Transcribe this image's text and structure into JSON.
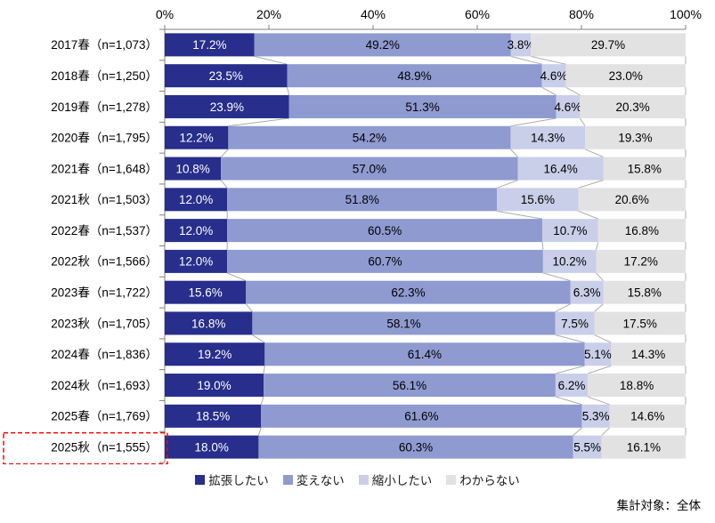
{
  "chart_data": {
    "type": "bar",
    "variant": "horizontal-stacked-100",
    "title": "",
    "categories": [
      "2017春（n=1,073）",
      "2018春（n=1,250）",
      "2019春（n=1,278）",
      "2020春（n=1,795）",
      "2021春（n=1,648）",
      "2021秋（n=1,503）",
      "2022春（n=1,537）",
      "2022秋（n=1,566）",
      "2023春（n=1,722）",
      "2023秋（n=1,705）",
      "2024春（n=1,836）",
      "2024秋（n=1,693）",
      "2025春（n=1,769）",
      "2025秋（n=1,555）"
    ],
    "series": [
      {
        "name": "拡張したい",
        "color": "#272E8B",
        "label_color": "#ffffff",
        "values": [
          17.2,
          23.5,
          23.9,
          12.2,
          10.8,
          12.0,
          12.0,
          12.0,
          15.6,
          16.8,
          19.2,
          19.0,
          18.5,
          18.0
        ]
      },
      {
        "name": "変えない",
        "color": "#8F9AD0",
        "label_color": "#000000",
        "values": [
          49.2,
          48.9,
          51.3,
          54.2,
          57.0,
          51.8,
          60.5,
          60.7,
          62.3,
          58.1,
          61.4,
          56.1,
          61.6,
          60.3
        ]
      },
      {
        "name": "縮小したい",
        "color": "#C9CFE9",
        "label_color": "#000000",
        "values": [
          3.8,
          4.6,
          4.6,
          14.3,
          16.4,
          15.6,
          10.7,
          10.2,
          6.3,
          7.5,
          5.1,
          6.2,
          5.3,
          5.5
        ]
      },
      {
        "name": "わからない",
        "color": "#E2E2E2",
        "label_color": "#000000",
        "values": [
          29.7,
          23.0,
          20.3,
          19.3,
          15.8,
          20.6,
          16.8,
          17.2,
          15.8,
          17.5,
          14.3,
          18.8,
          14.6,
          16.1
        ]
      }
    ],
    "x_axis": {
      "min": 0,
      "max": 100,
      "tick_step": 20,
      "tick_labels": [
        "0%",
        "20%",
        "40%",
        "60%",
        "80%",
        "100%"
      ],
      "position": "top"
    },
    "legend_position": "bottom",
    "grid": false,
    "highlighted_category_index": 13,
    "value_suffix": "%"
  },
  "footer": {
    "note": "集計対象：全体"
  },
  "colors": {
    "axis_line": "#808080",
    "connector_line": "#ABABAB",
    "highlight_box": "#FF0000",
    "tick_label": "#000000",
    "category_label": "#000000"
  }
}
